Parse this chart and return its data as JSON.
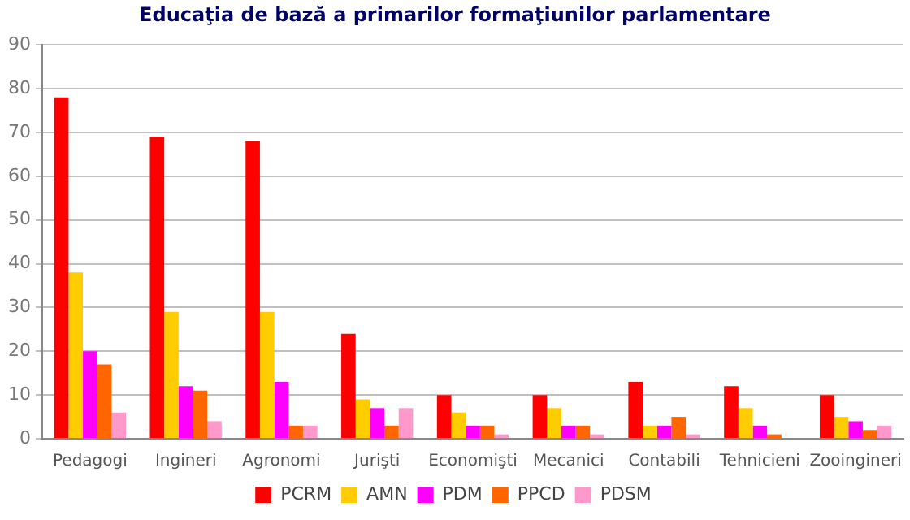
{
  "chart_data": {
    "type": "bar",
    "title": "Educaţia de bază a primarilor formaţiunilor parlamentare",
    "categories": [
      "Pedagogi",
      "Ingineri",
      "Agronomi",
      "Jurişti",
      "Economişti",
      "Mecanici",
      "Contabili",
      "Tehnicieni",
      "Zooingineri"
    ],
    "series": [
      {
        "name": "PCRM",
        "color": "#ff0000",
        "values": [
          78,
          69,
          68,
          24,
          10,
          10,
          13,
          12,
          10
        ]
      },
      {
        "name": "AMN",
        "color": "#ffcc00",
        "values": [
          38,
          29,
          29,
          9,
          6,
          7,
          3,
          7,
          5
        ]
      },
      {
        "name": "PDM",
        "color": "#ff00ff",
        "values": [
          20,
          12,
          13,
          7,
          3,
          3,
          3,
          3,
          4
        ]
      },
      {
        "name": "PPCD",
        "color": "#ff6600",
        "values": [
          17,
          11,
          3,
          3,
          3,
          3,
          5,
          1,
          2
        ]
      },
      {
        "name": "PDSM",
        "color": "#ff99cc",
        "values": [
          6,
          4,
          3,
          7,
          1,
          1,
          1,
          0,
          3
        ]
      }
    ],
    "ylim": [
      0,
      90
    ],
    "yticks": [
      0,
      10,
      20,
      30,
      40,
      50,
      60,
      70,
      80,
      90
    ],
    "grid": "y",
    "legend": "bottom"
  }
}
